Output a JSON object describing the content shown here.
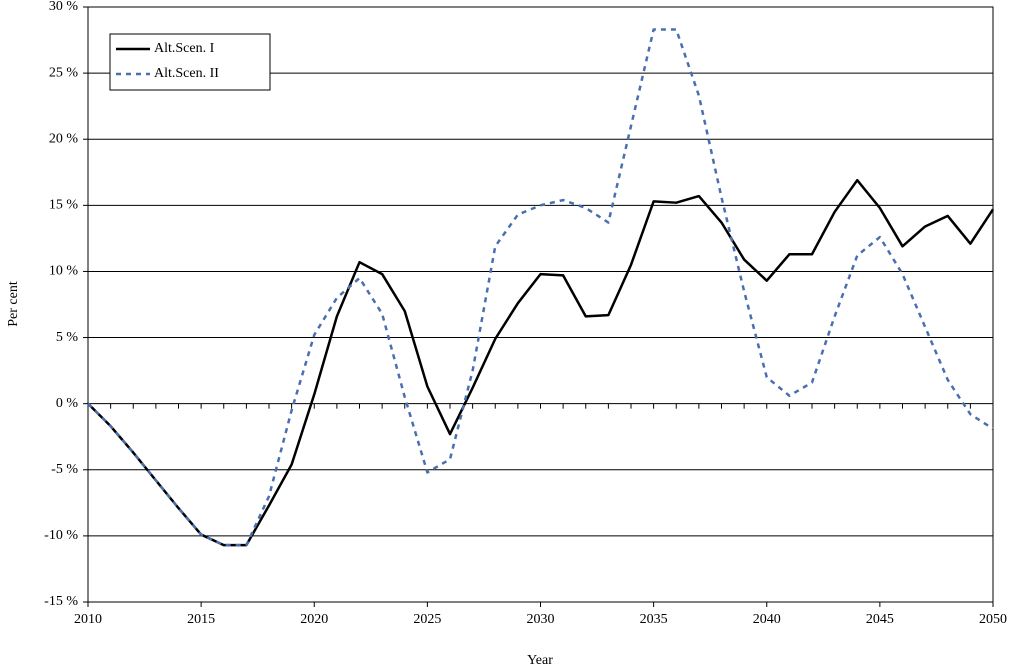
{
  "chart_data": {
    "type": "line",
    "xlabel": "Year",
    "ylabel": "Per cent",
    "x": [
      2010,
      2011,
      2012,
      2013,
      2014,
      2015,
      2016,
      2017,
      2018,
      2019,
      2020,
      2021,
      2022,
      2023,
      2024,
      2025,
      2026,
      2027,
      2028,
      2029,
      2030,
      2031,
      2032,
      2033,
      2034,
      2035,
      2036,
      2037,
      2038,
      2039,
      2040,
      2041,
      2042,
      2043,
      2044,
      2045,
      2046,
      2047,
      2048,
      2049,
      2050
    ],
    "series": [
      {
        "name": "Alt.Scen. I",
        "color": "#000000",
        "dash": "solid",
        "values": [
          0,
          -1.7,
          -3.7,
          -5.8,
          -7.9,
          -9.9,
          -10.7,
          -10.7,
          -7.7,
          -4.6,
          0.7,
          6.6,
          10.7,
          9.8,
          7.0,
          1.3,
          -2.3,
          1.2,
          4.9,
          7.6,
          9.8,
          9.7,
          6.6,
          6.7,
          10.5,
          15.3,
          15.2,
          15.7,
          13.7,
          10.9,
          9.3,
          11.3,
          11.3,
          14.5,
          16.9,
          14.8,
          11.9,
          13.4,
          14.2,
          12.1,
          14.7
        ]
      },
      {
        "name": "Alt.Scen. II",
        "color": "#4a6fb0",
        "dash": "dashed",
        "values": [
          0,
          -1.7,
          -3.7,
          -5.8,
          -7.9,
          -9.9,
          -10.7,
          -10.7,
          -7.0,
          -0.5,
          5.2,
          8.0,
          9.5,
          6.8,
          0.5,
          -5.2,
          -4.2,
          2.5,
          11.9,
          14.3,
          15.0,
          15.4,
          14.8,
          13.7,
          21.0,
          28.3,
          28.3,
          23.3,
          15.6,
          8.5,
          2.0,
          0.6,
          1.6,
          6.6,
          11.2,
          12.6,
          9.8,
          5.8,
          1.8,
          -0.8,
          -1.9
        ]
      }
    ],
    "xlim": [
      2010,
      2050
    ],
    "xticks": [
      2010,
      2015,
      2020,
      2025,
      2030,
      2035,
      2040,
      2045,
      2050
    ],
    "ylim": [
      -15,
      30
    ],
    "yticks": [
      {
        "value": -15,
        "label": "-15 %"
      },
      {
        "value": -10,
        "label": "-10 %"
      },
      {
        "value": -5,
        "label": "-5 %"
      },
      {
        "value": 0,
        "label": "0 %"
      },
      {
        "value": 5,
        "label": "5 %"
      },
      {
        "value": 10,
        "label": "10 %"
      },
      {
        "value": 15,
        "label": "15 %"
      },
      {
        "value": 20,
        "label": "20 %"
      },
      {
        "value": 25,
        "label": "25 %"
      },
      {
        "value": 30,
        "label": "30 %"
      }
    ],
    "grid": true,
    "legend": "upper left"
  }
}
